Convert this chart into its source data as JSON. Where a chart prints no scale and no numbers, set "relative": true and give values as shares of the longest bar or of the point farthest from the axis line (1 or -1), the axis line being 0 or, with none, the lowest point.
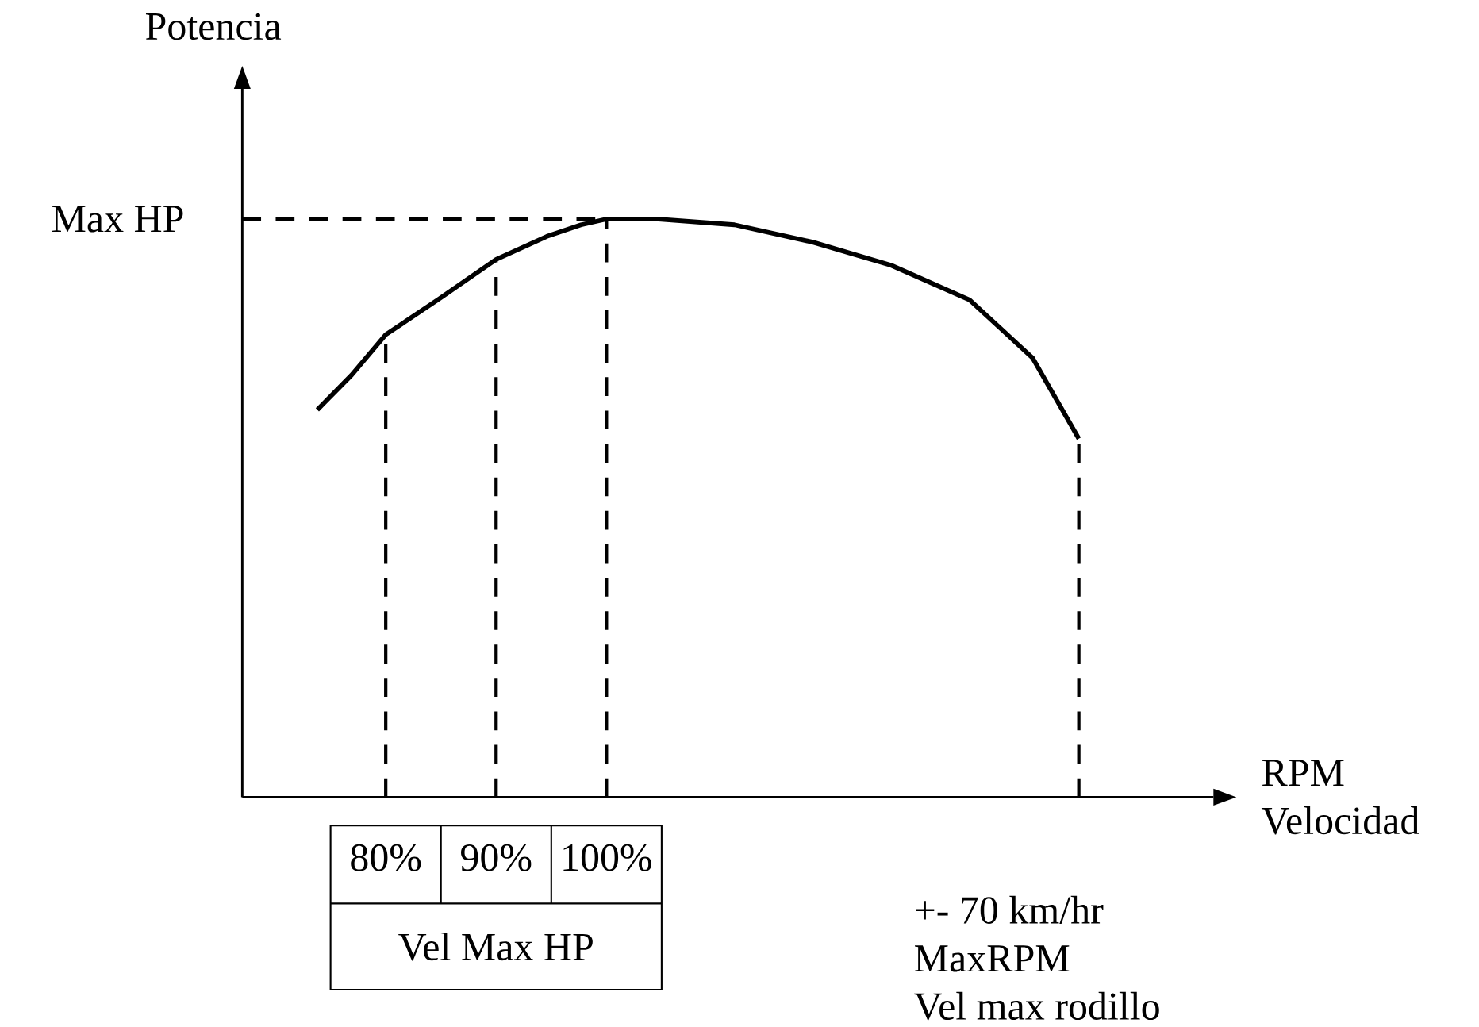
{
  "chart_data": {
    "type": "line",
    "relative": true,
    "ylabel": "Potencia",
    "xlabel": "RPM Velocidad",
    "x": [
      73.8,
      76.9,
      80,
      84.7,
      90,
      94.6,
      97.7,
      100,
      104.5,
      111.6,
      118.7,
      125.8,
      132.9,
      138.6,
      142.8
    ],
    "xlim": [
      67,
      155
    ],
    "xticks": [
      {
        "value": 80,
        "label": "80%"
      },
      {
        "value": 90,
        "label": "90%"
      },
      {
        "value": 100,
        "label": "100%"
      }
    ],
    "series": [
      {
        "color": "#000000",
        "values": [
          0.67,
          0.73,
          0.8,
          0.86,
          0.93,
          0.97,
          0.99,
          1,
          1,
          0.99,
          0.96,
          0.92,
          0.86,
          0.76,
          0.62
        ]
      }
    ],
    "ref_lines": [
      {
        "axis": "y",
        "value": 1,
        "label": "Max HP",
        "color": "#000000",
        "line_style": "dashed"
      },
      {
        "axis": "x",
        "value": 80,
        "color": "#000000",
        "line_style": "dashed"
      },
      {
        "axis": "x",
        "value": 90,
        "color": "#000000",
        "line_style": "dashed"
      },
      {
        "axis": "x",
        "value": 100,
        "color": "#000000",
        "line_style": "dashed"
      },
      {
        "axis": "x",
        "value": 142.8,
        "color": "#000000",
        "line_style": "dashed"
      }
    ],
    "annotations": [
      "Vel Max HP",
      "+- 70 km/hr",
      "MaxRPM",
      "Vel max rodillo"
    ]
  }
}
